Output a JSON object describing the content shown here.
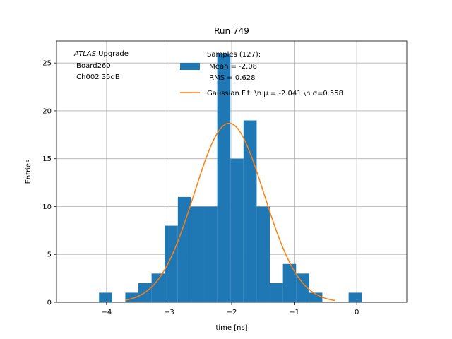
{
  "chart_data": {
    "type": "bar",
    "title": "Run 749",
    "xlabel": "time [ns]",
    "ylabel": "Entries",
    "xlim": [
      -4.8,
      0.8
    ],
    "ylim": [
      0,
      27.3
    ],
    "xticks": [
      -4,
      -3,
      -2,
      -1,
      0
    ],
    "xtick_labels": [
      "−4",
      "−3",
      "−2",
      "−1",
      "0"
    ],
    "yticks": [
      0,
      5,
      10,
      15,
      20,
      25
    ],
    "ytick_labels": [
      "0",
      "5",
      "10",
      "15",
      "20",
      "25"
    ],
    "grid": true,
    "bin_width": 0.21,
    "histogram": {
      "bin_edges": [
        -4.12,
        -3.91,
        -3.7,
        -3.49,
        -3.28,
        -3.07,
        -2.86,
        -2.65,
        -2.44,
        -2.23,
        -2.02,
        -1.81,
        -1.6,
        -1.39,
        -1.18,
        -0.97,
        -0.76,
        -0.55,
        -0.34,
        -0.13,
        0.08,
        0.29
      ],
      "counts": [
        1,
        0,
        1,
        2,
        3,
        8,
        11,
        10,
        10,
        26,
        15,
        19,
        10,
        2,
        4,
        3,
        1,
        0,
        0,
        1,
        0
      ],
      "color": "#1f77b4"
    },
    "fit_curve": {
      "type": "gaussian",
      "amplitude": 18.7,
      "mu": -2.041,
      "sigma": 0.558,
      "color": "#ff7f0e"
    },
    "legend": {
      "placement": "top-right",
      "entries": [
        {
          "label_lines": [
            "Samples (127):",
            " Mean = -2.08",
            " RMS = 0.628"
          ],
          "color": "#1f77b4",
          "kind": "patch"
        },
        {
          "label_lines": [
            "Gaussian Fit: \\n μ = -2.041 \\n σ=0.558"
          ],
          "color": "#ff7f0e",
          "kind": "line"
        }
      ]
    },
    "annotation": {
      "italic": "ATLAS",
      "rest": " Upgrade",
      "lines": [
        " Board260",
        " Ch002 35dB"
      ],
      "placement": "top-left"
    }
  }
}
